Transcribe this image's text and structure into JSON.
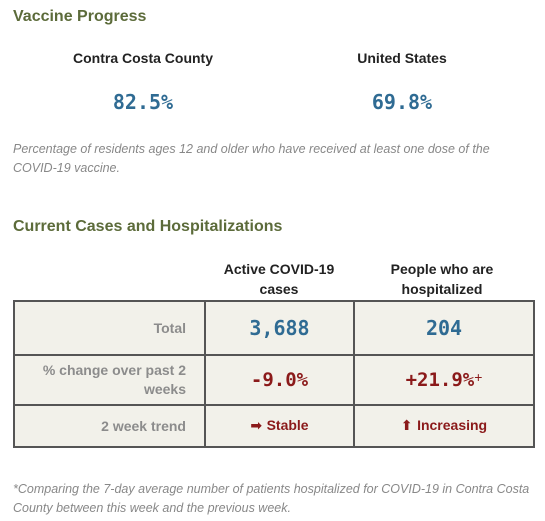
{
  "vaccine": {
    "title": "Vaccine Progress",
    "regions": [
      {
        "name": "Contra Costa County",
        "value": "82.5%"
      },
      {
        "name": "United States",
        "value": "69.8%"
      }
    ],
    "note": "Percentage of residents ages 12 and older who have received at least one dose of the COVID-19 vaccine."
  },
  "cases": {
    "title": "Current Cases and Hospitalizations",
    "columns": [
      "Active COVID-19 cases",
      "People who are hospitalized"
    ],
    "rows": {
      "total": {
        "label": "Total",
        "cases": "3,688",
        "hosp": "204"
      },
      "change": {
        "label": "% change over past 2 weeks",
        "cases": "-9.0%",
        "hosp": "+21.9%",
        "hosp_mark": "+"
      },
      "trend": {
        "label": "2 week trend",
        "cases": "Stable",
        "cases_icon": "➡",
        "hosp": "Increasing",
        "hosp_icon": "⬆"
      }
    },
    "footnote": "*Comparing the 7-day average number of patients hospitalized for COVID-19 in Contra Costa County between this week and the previous week."
  },
  "colors": {
    "title_green": "#5c6b3a",
    "value_blue": "#2f6b93",
    "value_red": "#8b1a1a",
    "cell_bg": "#f2f1ea"
  }
}
